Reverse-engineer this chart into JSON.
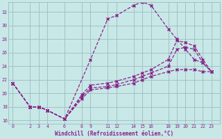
{
  "xlabel": "Windchill (Refroidissement éolien,°C)",
  "bg_color": "#c8e8e8",
  "line_color": "#882288",
  "grid_color": "#9bbcbc",
  "ylim": [
    15.5,
    33.5
  ],
  "xlim": [
    -0.5,
    24.0
  ],
  "yticks": [
    16,
    18,
    20,
    22,
    24,
    26,
    28,
    30,
    32
  ],
  "xticks": [
    0,
    2,
    3,
    4,
    6,
    8,
    9,
    11,
    12,
    14,
    15,
    16,
    18,
    19,
    20,
    21,
    22,
    23
  ],
  "line1_x": [
    0,
    2,
    3,
    4,
    6,
    9,
    11,
    12,
    14,
    15,
    16,
    18,
    19,
    20,
    21,
    22,
    23
  ],
  "line1_y": [
    21.5,
    18.0,
    18.0,
    17.5,
    16.2,
    25.0,
    31.0,
    31.5,
    33.0,
    33.5,
    33.0,
    29.5,
    28.0,
    26.5,
    25.0,
    24.5,
    23.2
  ],
  "line2_x": [
    0,
    2,
    3,
    4,
    6,
    8,
    9,
    11,
    12,
    14,
    15,
    16,
    18,
    19,
    20,
    21,
    22,
    23
  ],
  "line2_y": [
    21.5,
    18.0,
    18.0,
    17.5,
    16.2,
    19.8,
    21.2,
    21.5,
    21.8,
    22.5,
    23.0,
    23.5,
    25.0,
    27.8,
    27.5,
    27.0,
    25.0,
    23.2
  ],
  "line3_x": [
    0,
    2,
    3,
    4,
    6,
    8,
    9,
    11,
    12,
    14,
    15,
    16,
    18,
    19,
    20,
    21,
    22,
    23
  ],
  "line3_y": [
    21.5,
    18.0,
    18.0,
    17.5,
    16.2,
    19.5,
    20.8,
    21.0,
    21.3,
    22.0,
    22.5,
    23.0,
    24.0,
    26.5,
    26.8,
    26.5,
    24.5,
    23.2
  ],
  "line4_x": [
    0,
    2,
    3,
    4,
    6,
    8,
    9,
    11,
    12,
    14,
    15,
    16,
    18,
    19,
    20,
    21,
    22,
    23
  ],
  "line4_y": [
    21.5,
    18.0,
    18.0,
    17.5,
    16.2,
    19.2,
    20.5,
    20.8,
    21.0,
    21.5,
    22.0,
    22.5,
    23.2,
    23.5,
    23.5,
    23.5,
    23.2,
    23.2
  ]
}
